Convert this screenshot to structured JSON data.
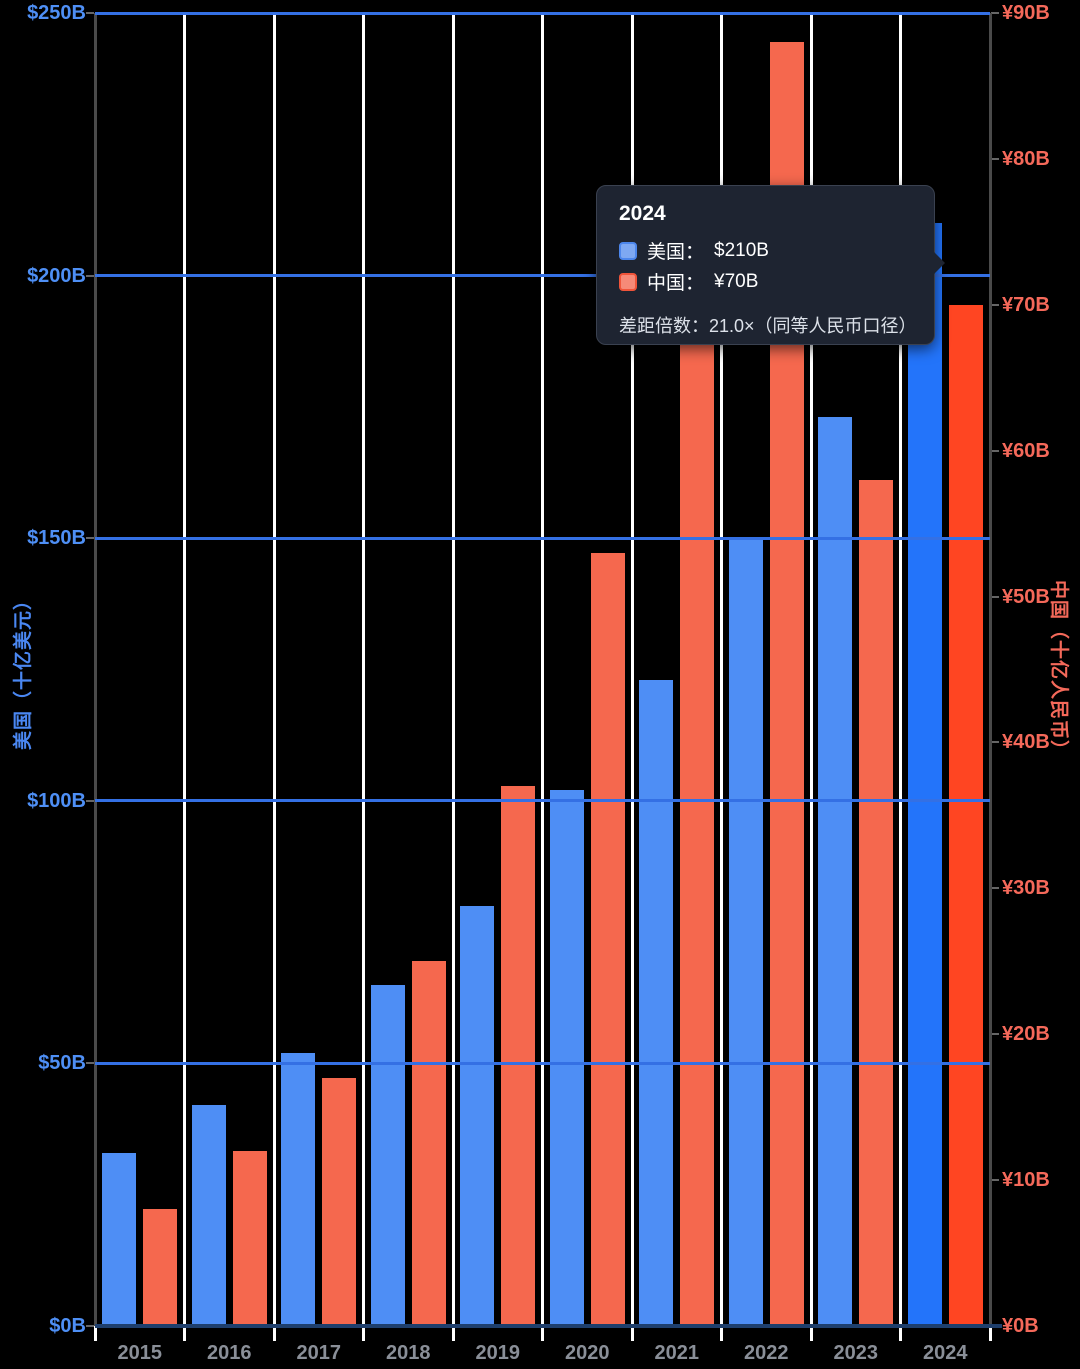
{
  "chart_data": {
    "type": "bar",
    "title": "",
    "categories": [
      "2015",
      "2016",
      "2017",
      "2018",
      "2019",
      "2020",
      "2021",
      "2022",
      "2023",
      "2024"
    ],
    "series": [
      {
        "key": "us",
        "name": "美国",
        "axis": "left",
        "unit": "十亿美元",
        "values": [
          33,
          42,
          52,
          65,
          80,
          102,
          123,
          150,
          173,
          210
        ]
      },
      {
        "key": "cn",
        "name": "中国",
        "axis": "right",
        "unit": "十亿人民币",
        "values": [
          8,
          12,
          17,
          25,
          37,
          53,
          72,
          88,
          58,
          70
        ]
      }
    ],
    "left_axis": {
      "title": "美国（十亿美元）",
      "range": [
        0,
        250
      ],
      "tick_labels": [
        "$0B",
        "$50B",
        "$100B",
        "$150B",
        "$200B",
        "$250B"
      ]
    },
    "right_axis": {
      "title": "中国（十亿人民币）",
      "range": [
        0,
        90
      ],
      "tick_labels": [
        "¥0B",
        "¥10B",
        "¥20B",
        "¥30B",
        "¥40B",
        "¥50B",
        "¥60B",
        "¥70B",
        "¥80B",
        "¥90B"
      ]
    },
    "hovered_category": "2024",
    "grid": true,
    "legend_position": "none"
  },
  "tooltip": {
    "title": "2024",
    "rows": [
      {
        "series": "us",
        "label": "美国：",
        "value": "$210B"
      },
      {
        "series": "cn",
        "label": "中国：",
        "value": "¥70B"
      }
    ],
    "footer": "差距倍数：21.0×（同等人民币口径）"
  },
  "colors": {
    "us_bar": "#4e8ef5",
    "us_bar_hover": "#2374fa",
    "cn_bar": "#f5684e",
    "cn_bar_hover": "#ff4522",
    "grid_blue": "#3470e4",
    "baseline_navy": "#1e3f6d",
    "grid_white": "#ffffff",
    "axis_gray": "#4a4a4a",
    "tick_gray": "#666666",
    "left_label": "#4e8ff5",
    "right_label": "#f5695a",
    "x_label": "#8a8f98",
    "axis_title_left": "#4a87f2",
    "axis_title_right": "#f4695a",
    "tooltip_bg": "#1e2431",
    "tooltip_border": "#3a4150",
    "tooltip_footer_text": "#dce1e9",
    "swatch_us_fill": "#7ea8f2",
    "swatch_us_border": "#4c86ec",
    "swatch_cn_fill": "#f68a78",
    "swatch_cn_border": "#f0543a"
  }
}
